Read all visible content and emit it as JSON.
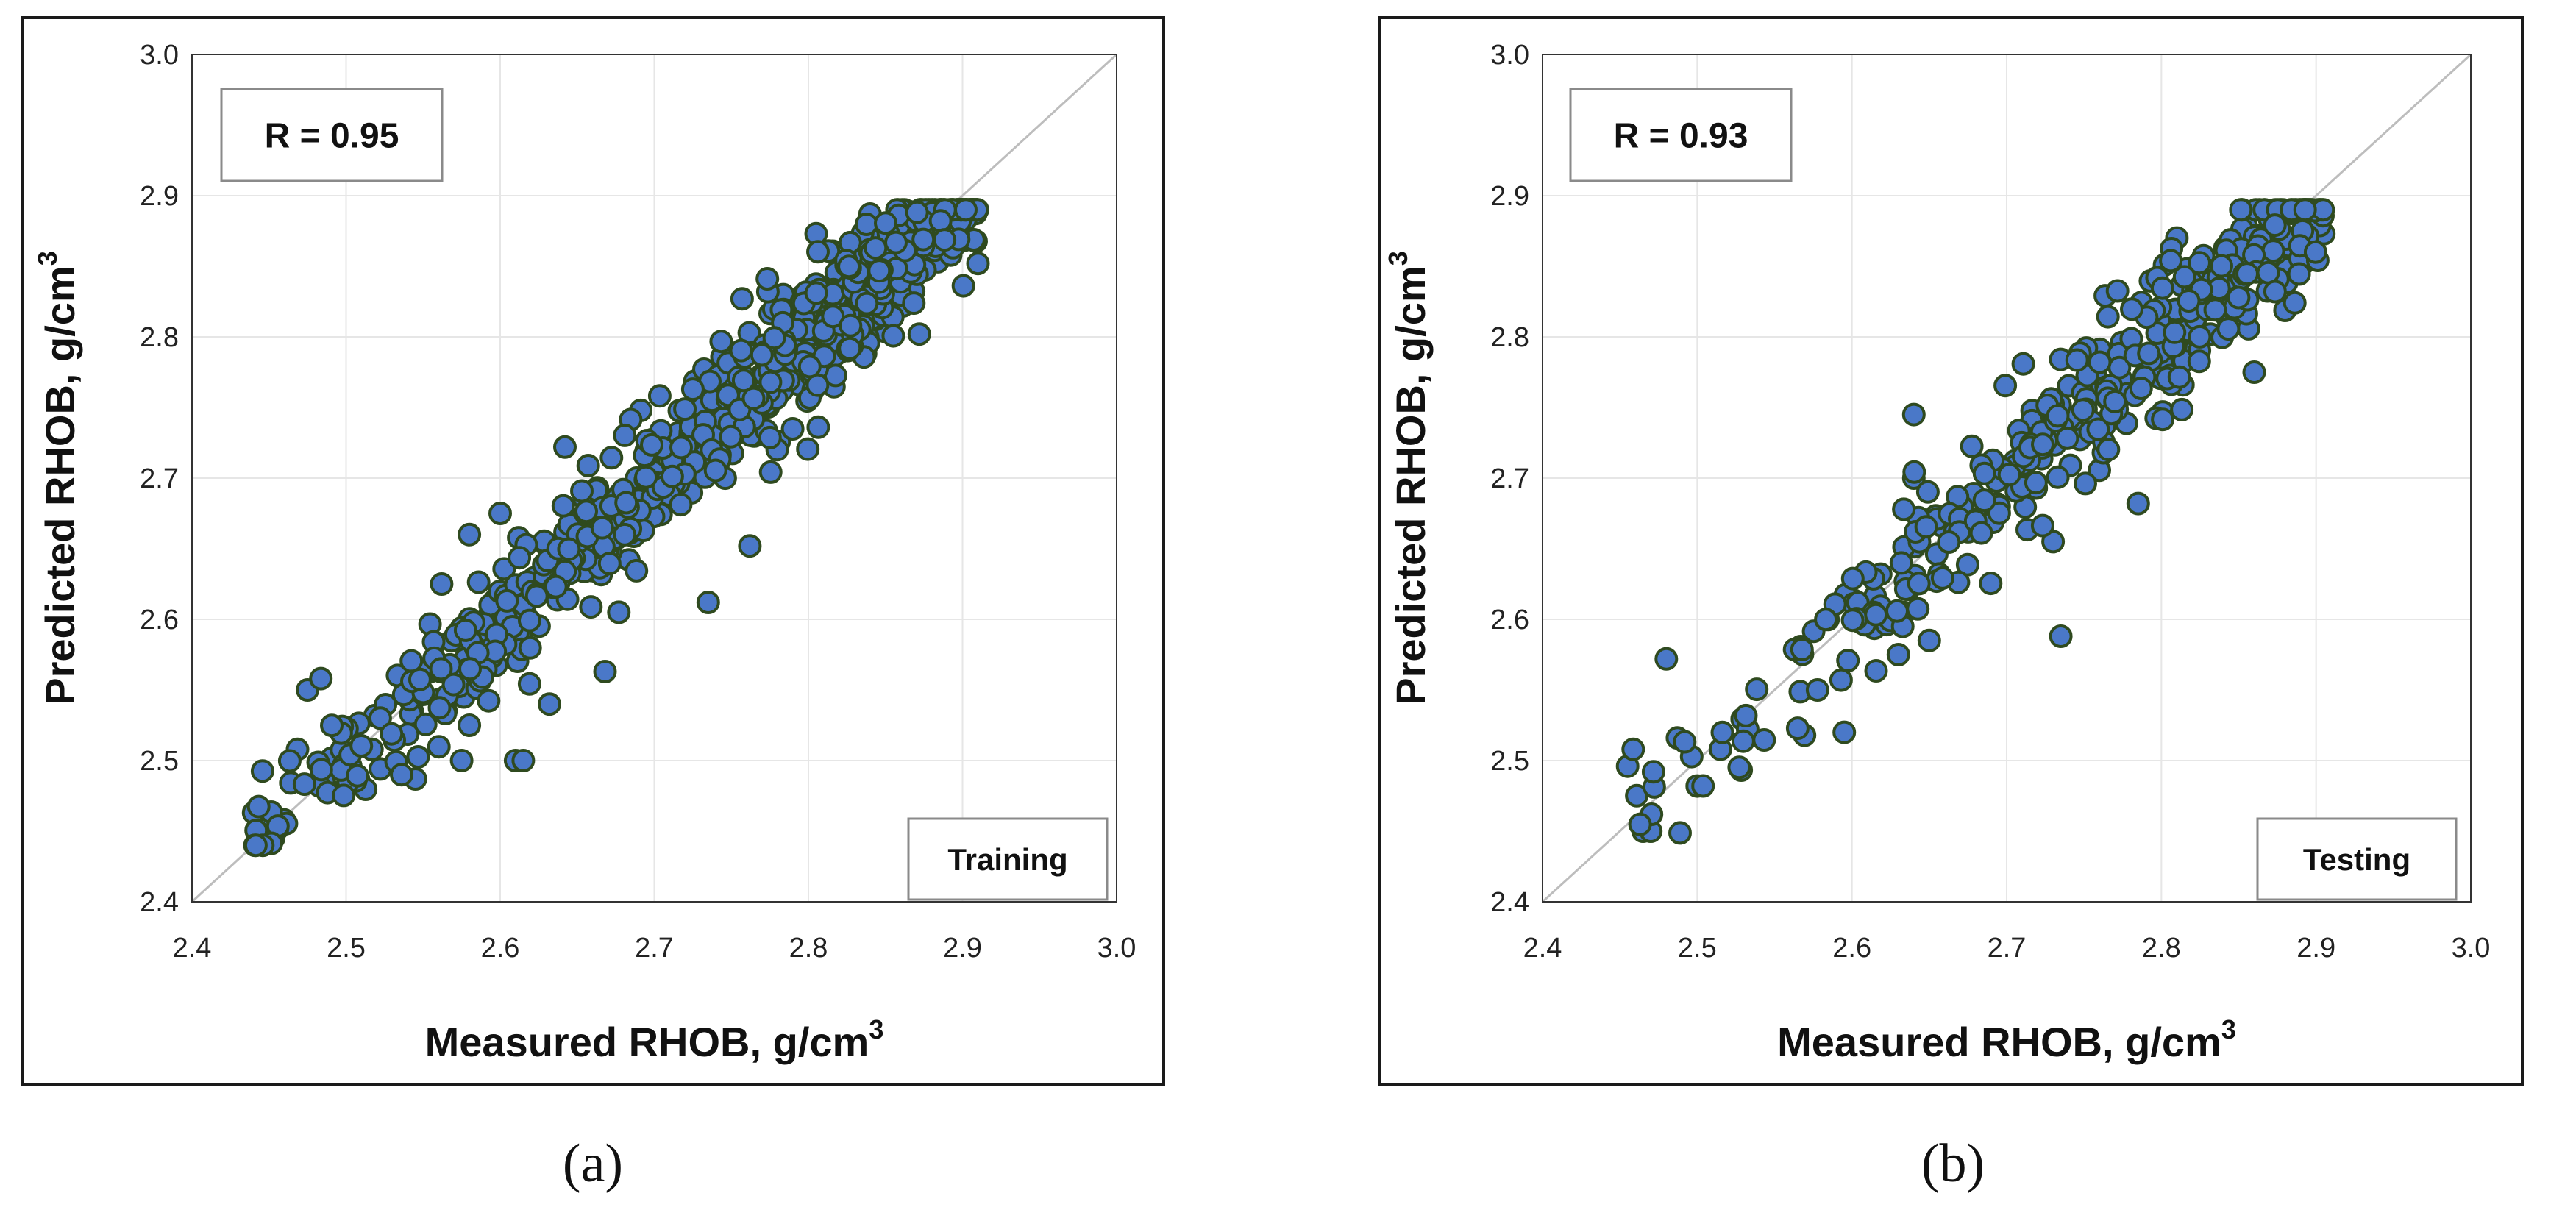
{
  "colors": {
    "marker_fill": "#4a78c8",
    "marker_stroke": "#2f4a1f",
    "grid": "#e6e6e6",
    "diagonal": "#bdbdbd",
    "plot_border": "#333333",
    "box_border": "#8a8a8a"
  },
  "captions": {
    "a": "(a)",
    "b": "(b)"
  },
  "chart_data": [
    {
      "type": "scatter",
      "panel": "a",
      "xlabel": "Measured RHOB, g/cm",
      "xlabel_sup": "3",
      "ylabel": "Predicted RHOB, g/cm",
      "ylabel_sup": "3",
      "xlim": [
        2.4,
        3.0
      ],
      "ylim": [
        2.4,
        3.0
      ],
      "x_ticks": [
        "2.4",
        "2.5",
        "2.6",
        "2.7",
        "2.8",
        "2.9",
        "3.0"
      ],
      "y_ticks": [
        "2.4",
        "2.5",
        "2.6",
        "2.7",
        "2.8",
        "2.9",
        "3.0"
      ],
      "grid": true,
      "reference_line": "y = x",
      "r_label": "R = 0.95",
      "set_label": "Training",
      "point_count": 900,
      "seed": 7,
      "x_range": [
        2.44,
        2.91
      ],
      "residual_sd": 0.022,
      "outliers": [
        [
          2.453,
          2.445
        ],
        [
          2.44,
          2.463
        ],
        [
          2.475,
          2.55
        ],
        [
          2.545,
          2.487
        ],
        [
          2.508,
          2.487
        ],
        [
          2.575,
          2.5
        ],
        [
          2.61,
          2.5
        ],
        [
          2.615,
          2.5
        ],
        [
          2.58,
          2.525
        ],
        [
          2.632,
          2.54
        ],
        [
          2.668,
          2.563
        ],
        [
          2.677,
          2.605
        ],
        [
          2.735,
          2.612
        ],
        [
          2.762,
          2.652
        ],
        [
          2.872,
          2.802
        ],
        [
          2.757,
          2.827
        ],
        [
          2.805,
          2.873
        ],
        [
          2.6,
          2.675
        ],
        [
          2.642,
          2.722
        ],
        [
          2.91,
          2.852
        ],
        [
          2.84,
          2.887
        ],
        [
          2.875,
          2.888
        ],
        [
          2.58,
          2.66
        ],
        [
          2.562,
          2.625
        ]
      ]
    },
    {
      "type": "scatter",
      "panel": "b",
      "xlabel": "Measured RHOB, g/cm",
      "xlabel_sup": "3",
      "ylabel": "Predicted RHOB, g/cm",
      "ylabel_sup": "3",
      "xlim": [
        2.4,
        3.0
      ],
      "ylim": [
        2.4,
        3.0
      ],
      "x_ticks": [
        "2.4",
        "2.5",
        "2.6",
        "2.7",
        "2.8",
        "2.9",
        "3.0"
      ],
      "y_ticks": [
        "2.4",
        "2.5",
        "2.6",
        "2.7",
        "2.8",
        "2.9",
        "3.0"
      ],
      "grid": true,
      "reference_line": "y = x",
      "r_label": "R = 0.93",
      "set_label": "Testing",
      "point_count": 420,
      "seed": 19,
      "x_range": [
        2.455,
        2.905
      ],
      "residual_sd": 0.026,
      "outliers": [
        [
          2.465,
          2.45
        ],
        [
          2.47,
          2.45
        ],
        [
          2.455,
          2.496
        ],
        [
          2.48,
          2.572
        ],
        [
          2.5,
          2.482
        ],
        [
          2.595,
          2.52
        ],
        [
          2.593,
          2.557
        ],
        [
          2.735,
          2.588
        ],
        [
          2.65,
          2.585
        ],
        [
          2.785,
          2.682
        ],
        [
          2.86,
          2.775
        ],
        [
          2.81,
          2.87
        ],
        [
          2.855,
          2.878
        ],
        [
          2.64,
          2.745
        ],
        [
          2.64,
          2.7
        ],
        [
          2.73,
          2.655
        ],
        [
          2.905,
          2.873
        ],
        [
          2.63,
          2.575
        ],
        [
          2.515,
          2.508
        ]
      ]
    }
  ]
}
